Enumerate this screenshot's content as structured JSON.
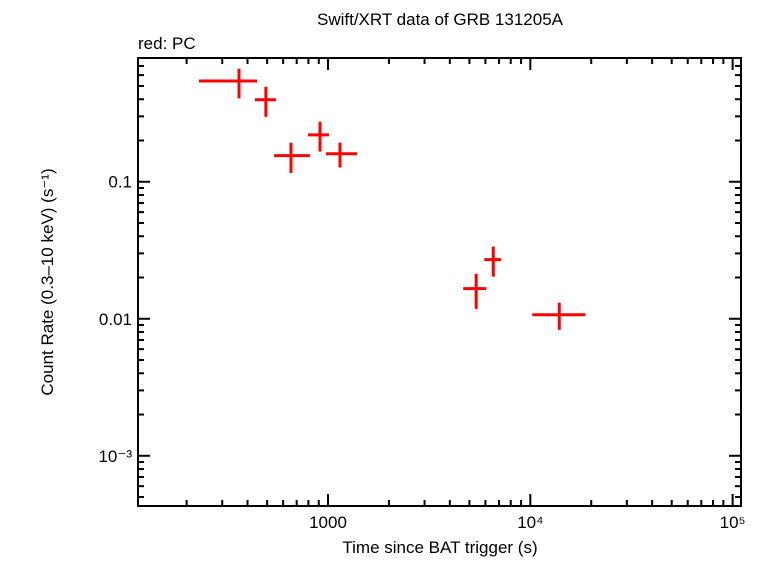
{
  "chart_data": {
    "type": "scatter",
    "title": "Swift/XRT data of GRB 131205A",
    "subtitle": "red: PC",
    "xlabel": "Time since BAT trigger (s)",
    "ylabel": "Count Rate (0.3–10 keV) (s⁻¹)",
    "xscale": "log",
    "yscale": "log",
    "xlim": [
      115,
      110000
    ],
    "ylim": [
      0.00043,
      0.8
    ],
    "grid": false,
    "x_ticks": [
      {
        "value": 1000,
        "label": "1000"
      },
      {
        "value": 10000,
        "label": "10⁴"
      },
      {
        "value": 100000,
        "label": "10⁵"
      }
    ],
    "y_ticks": [
      {
        "value": 0.1,
        "label": "0.1"
      },
      {
        "value": 0.01,
        "label": "0.01"
      },
      {
        "value": 0.001,
        "label": "10⁻³"
      }
    ],
    "series": [
      {
        "color": "#ff0000",
        "points": [
          {
            "x": 363,
            "xlo": 230,
            "xhi": 446,
            "y": 0.543,
            "ylo": 0.406,
            "yhi": 0.668
          },
          {
            "x": 493,
            "xlo": 435,
            "xhi": 553,
            "y": 0.397,
            "ylo": 0.298,
            "yhi": 0.494
          },
          {
            "x": 656,
            "xlo": 541,
            "xhi": 814,
            "y": 0.155,
            "ylo": 0.116,
            "yhi": 0.193
          },
          {
            "x": 913,
            "xlo": 796,
            "xhi": 1011,
            "y": 0.22,
            "ylo": 0.166,
            "yhi": 0.274
          },
          {
            "x": 1146,
            "xlo": 977,
            "xhi": 1392,
            "y": 0.16,
            "ylo": 0.127,
            "yhi": 0.193
          },
          {
            "x": 5400,
            "xlo": 4660,
            "xhi": 6060,
            "y": 0.0166,
            "ylo": 0.0118,
            "yhi": 0.0213
          },
          {
            "x": 6560,
            "xlo": 5920,
            "xhi": 7180,
            "y": 0.027,
            "ylo": 0.0203,
            "yhi": 0.0336
          },
          {
            "x": 13900,
            "xlo": 10230,
            "xhi": 18720,
            "y": 0.0107,
            "ylo": 0.0083,
            "yhi": 0.0131
          }
        ]
      }
    ]
  }
}
